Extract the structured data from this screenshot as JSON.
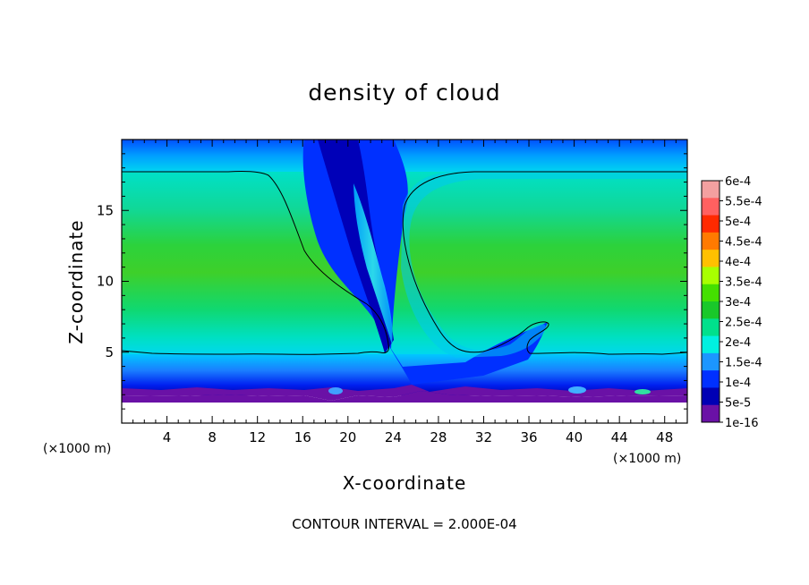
{
  "chart_data": {
    "type": "heatmap",
    "title": "density of cloud",
    "xlabel": "X-coordinate",
    "ylabel": "Z-coordinate",
    "x_unit": "(×1000 m)",
    "y_unit": "(×1000 m)",
    "xlim": [
      0,
      50
    ],
    "ylim": [
      0,
      20
    ],
    "x_ticks": [
      4,
      8,
      12,
      16,
      20,
      24,
      28,
      32,
      36,
      40,
      44,
      48
    ],
    "y_ticks": [
      5,
      10,
      15
    ],
    "contour_interval_text": "CONTOUR INTERVAL = 2.000E-04",
    "colorbar": {
      "labels": [
        "6e-4",
        "5.5e-4",
        "5e-4",
        "4.5e-4",
        "4e-4",
        "3.5e-4",
        "3e-4",
        "2.5e-4",
        "2e-4",
        "1.5e-4",
        "1e-4",
        "5e-5",
        "1e-16"
      ],
      "colors": [
        "#f3a0a0",
        "#ff6060",
        "#ff2a00",
        "#ff7a00",
        "#ffc000",
        "#a8ff00",
        "#44e000",
        "#19c82a",
        "#00e08c",
        "#00f0e0",
        "#1c96ff",
        "#0030ff",
        "#0000b4",
        "#6a11a6"
      ]
    },
    "field_features": {
      "cloud_base_km": 2,
      "cloud_top_km": 17.8,
      "contour_2e-4_bottom_km": 5,
      "clear_gap_x_km": [
        18,
        31
      ],
      "core_value": "3e-4"
    }
  }
}
